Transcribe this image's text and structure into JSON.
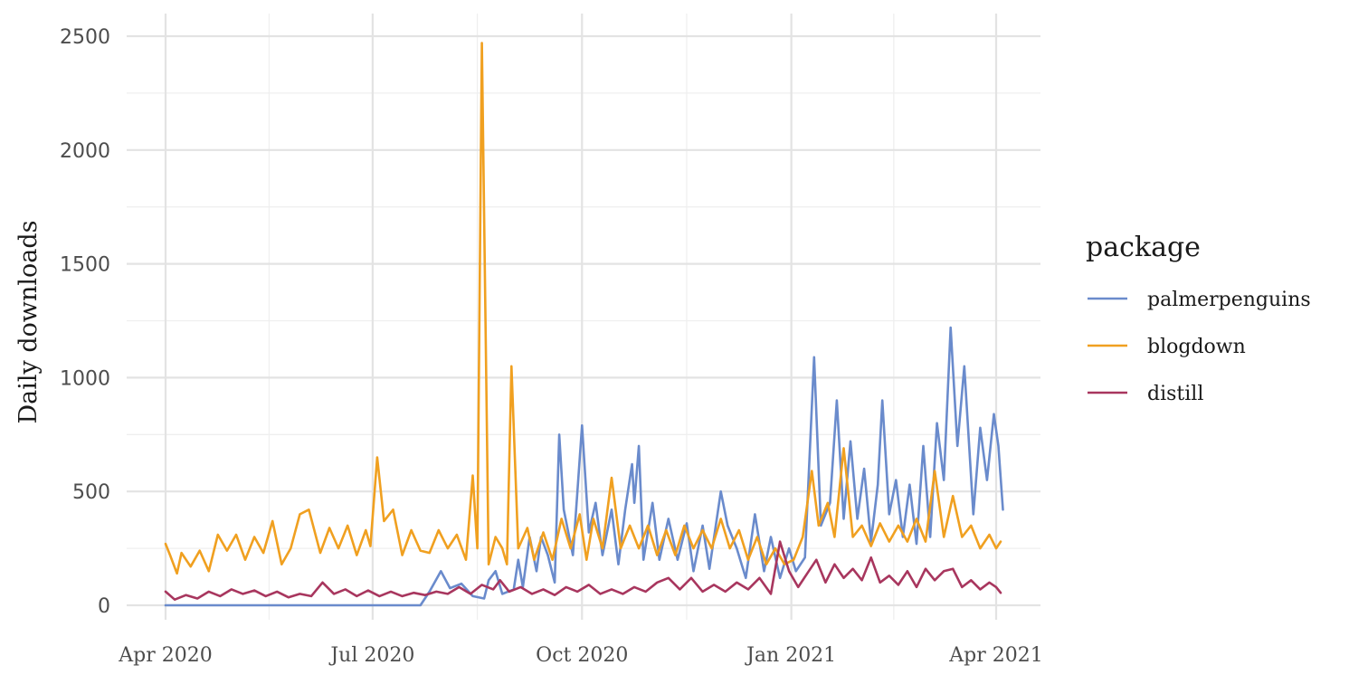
{
  "chart_data": {
    "type": "line",
    "title": "",
    "xlabel": "",
    "ylabel": "Daily downloads",
    "ylim": [
      0,
      2500
    ],
    "xlim": [
      "2020-04-01",
      "2021-04-01"
    ],
    "y_ticks": [
      "0",
      "500",
      "1000",
      "1500",
      "2000",
      "2500"
    ],
    "x_ticks": [
      {
        "date": "2020-04-01",
        "label": "Apr 2020"
      },
      {
        "date": "2020-07-01",
        "label": "Jul 2020"
      },
      {
        "date": "2020-10-01",
        "label": "Oct 2020"
      },
      {
        "date": "2021-01-01",
        "label": "Jan 2021"
      },
      {
        "date": "2021-04-01",
        "label": "Apr 2021"
      }
    ],
    "grid": true,
    "legend": {
      "title": "package",
      "position": "right"
    },
    "series": [
      {
        "name": "palmerpenguins",
        "color": "#6A8BCC",
        "points": [
          [
            "2020-04-01",
            0
          ],
          [
            "2020-07-22",
            0
          ],
          [
            "2020-07-26",
            60
          ],
          [
            "2020-07-31",
            150
          ],
          [
            "2020-08-04",
            75
          ],
          [
            "2020-08-09",
            95
          ],
          [
            "2020-08-14",
            40
          ],
          [
            "2020-08-19",
            30
          ],
          [
            "2020-08-21",
            110
          ],
          [
            "2020-08-24",
            150
          ],
          [
            "2020-08-27",
            50
          ],
          [
            "2020-09-01",
            70
          ],
          [
            "2020-09-03",
            200
          ],
          [
            "2020-09-05",
            80
          ],
          [
            "2020-09-08",
            300
          ],
          [
            "2020-09-11",
            150
          ],
          [
            "2020-09-13",
            300
          ],
          [
            "2020-09-16",
            220
          ],
          [
            "2020-09-19",
            100
          ],
          [
            "2020-09-21",
            750
          ],
          [
            "2020-09-23",
            420
          ],
          [
            "2020-09-27",
            220
          ],
          [
            "2020-09-29",
            500
          ],
          [
            "2020-10-01",
            790
          ],
          [
            "2020-10-04",
            320
          ],
          [
            "2020-10-07",
            450
          ],
          [
            "2020-10-10",
            220
          ],
          [
            "2020-10-14",
            420
          ],
          [
            "2020-10-17",
            180
          ],
          [
            "2020-10-20",
            420
          ],
          [
            "2020-10-23",
            620
          ],
          [
            "2020-10-24",
            450
          ],
          [
            "2020-10-26",
            700
          ],
          [
            "2020-10-28",
            200
          ],
          [
            "2020-11-01",
            450
          ],
          [
            "2020-11-04",
            200
          ],
          [
            "2020-11-08",
            380
          ],
          [
            "2020-11-12",
            200
          ],
          [
            "2020-11-16",
            360
          ],
          [
            "2020-11-19",
            150
          ],
          [
            "2020-11-23",
            350
          ],
          [
            "2020-11-26",
            160
          ],
          [
            "2020-12-01",
            500
          ],
          [
            "2020-12-04",
            350
          ],
          [
            "2020-12-08",
            250
          ],
          [
            "2020-12-12",
            120
          ],
          [
            "2020-12-16",
            400
          ],
          [
            "2020-12-20",
            150
          ],
          [
            "2020-12-23",
            300
          ],
          [
            "2020-12-27",
            120
          ],
          [
            "2020-12-31",
            250
          ],
          [
            "2021-01-03",
            150
          ],
          [
            "2021-01-07",
            210
          ],
          [
            "2021-01-11",
            1090
          ],
          [
            "2021-01-14",
            350
          ],
          [
            "2021-01-18",
            450
          ],
          [
            "2021-01-21",
            900
          ],
          [
            "2021-01-24",
            380
          ],
          [
            "2021-01-27",
            720
          ],
          [
            "2021-01-30",
            380
          ],
          [
            "2021-02-02",
            600
          ],
          [
            "2021-02-05",
            280
          ],
          [
            "2021-02-08",
            530
          ],
          [
            "2021-02-10",
            900
          ],
          [
            "2021-02-13",
            400
          ],
          [
            "2021-02-16",
            550
          ],
          [
            "2021-02-19",
            300
          ],
          [
            "2021-02-22",
            530
          ],
          [
            "2021-02-25",
            270
          ],
          [
            "2021-02-28",
            700
          ],
          [
            "2021-03-03",
            300
          ],
          [
            "2021-03-06",
            800
          ],
          [
            "2021-03-09",
            550
          ],
          [
            "2021-03-12",
            1220
          ],
          [
            "2021-03-15",
            700
          ],
          [
            "2021-03-18",
            1050
          ],
          [
            "2021-03-22",
            400
          ],
          [
            "2021-03-25",
            780
          ],
          [
            "2021-03-28",
            550
          ],
          [
            "2021-03-31",
            840
          ],
          [
            "2021-04-02",
            700
          ],
          [
            "2021-04-04",
            420
          ]
        ]
      },
      {
        "name": "blogdown",
        "color": "#F0A020",
        "points": [
          [
            "2020-04-01",
            270
          ],
          [
            "2020-04-03",
            220
          ],
          [
            "2020-04-06",
            140
          ],
          [
            "2020-04-08",
            230
          ],
          [
            "2020-04-12",
            170
          ],
          [
            "2020-04-16",
            240
          ],
          [
            "2020-04-20",
            150
          ],
          [
            "2020-04-24",
            310
          ],
          [
            "2020-04-28",
            240
          ],
          [
            "2020-05-02",
            310
          ],
          [
            "2020-05-06",
            200
          ],
          [
            "2020-05-10",
            300
          ],
          [
            "2020-05-14",
            230
          ],
          [
            "2020-05-18",
            370
          ],
          [
            "2020-05-22",
            180
          ],
          [
            "2020-05-26",
            250
          ],
          [
            "2020-05-30",
            400
          ],
          [
            "2020-06-03",
            420
          ],
          [
            "2020-06-08",
            230
          ],
          [
            "2020-06-12",
            340
          ],
          [
            "2020-06-16",
            250
          ],
          [
            "2020-06-20",
            350
          ],
          [
            "2020-06-24",
            220
          ],
          [
            "2020-06-28",
            330
          ],
          [
            "2020-06-30",
            260
          ],
          [
            "2020-07-03",
            650
          ],
          [
            "2020-07-06",
            370
          ],
          [
            "2020-07-10",
            420
          ],
          [
            "2020-07-14",
            220
          ],
          [
            "2020-07-18",
            330
          ],
          [
            "2020-07-22",
            240
          ],
          [
            "2020-07-26",
            230
          ],
          [
            "2020-07-30",
            330
          ],
          [
            "2020-08-03",
            250
          ],
          [
            "2020-08-07",
            310
          ],
          [
            "2020-08-11",
            200
          ],
          [
            "2020-08-14",
            570
          ],
          [
            "2020-08-16",
            250
          ],
          [
            "2020-08-18",
            2470
          ],
          [
            "2020-08-21",
            180
          ],
          [
            "2020-08-24",
            300
          ],
          [
            "2020-08-27",
            250
          ],
          [
            "2020-08-29",
            180
          ],
          [
            "2020-08-31",
            1050
          ],
          [
            "2020-09-03",
            250
          ],
          [
            "2020-09-07",
            340
          ],
          [
            "2020-09-10",
            200
          ],
          [
            "2020-09-14",
            320
          ],
          [
            "2020-09-18",
            200
          ],
          [
            "2020-09-22",
            380
          ],
          [
            "2020-09-26",
            250
          ],
          [
            "2020-09-30",
            400
          ],
          [
            "2020-10-03",
            200
          ],
          [
            "2020-10-06",
            380
          ],
          [
            "2020-10-10",
            250
          ],
          [
            "2020-10-14",
            560
          ],
          [
            "2020-10-18",
            250
          ],
          [
            "2020-10-22",
            350
          ],
          [
            "2020-10-26",
            250
          ],
          [
            "2020-10-30",
            350
          ],
          [
            "2020-11-03",
            220
          ],
          [
            "2020-11-07",
            330
          ],
          [
            "2020-11-11",
            220
          ],
          [
            "2020-11-15",
            350
          ],
          [
            "2020-11-19",
            250
          ],
          [
            "2020-11-23",
            330
          ],
          [
            "2020-11-27",
            250
          ],
          [
            "2020-12-01",
            380
          ],
          [
            "2020-12-05",
            250
          ],
          [
            "2020-12-09",
            330
          ],
          [
            "2020-12-13",
            200
          ],
          [
            "2020-12-17",
            300
          ],
          [
            "2020-12-21",
            180
          ],
          [
            "2020-12-25",
            250
          ],
          [
            "2020-12-29",
            180
          ],
          [
            "2021-01-02",
            200
          ],
          [
            "2021-01-06",
            300
          ],
          [
            "2021-01-10",
            590
          ],
          [
            "2021-01-13",
            350
          ],
          [
            "2021-01-17",
            450
          ],
          [
            "2021-01-20",
            300
          ],
          [
            "2021-01-24",
            690
          ],
          [
            "2021-01-28",
            300
          ],
          [
            "2021-02-01",
            350
          ],
          [
            "2021-02-05",
            260
          ],
          [
            "2021-02-09",
            360
          ],
          [
            "2021-02-13",
            280
          ],
          [
            "2021-02-17",
            350
          ],
          [
            "2021-02-21",
            280
          ],
          [
            "2021-02-25",
            380
          ],
          [
            "2021-03-01",
            280
          ],
          [
            "2021-03-05",
            590
          ],
          [
            "2021-03-09",
            300
          ],
          [
            "2021-03-13",
            480
          ],
          [
            "2021-03-17",
            300
          ],
          [
            "2021-03-21",
            350
          ],
          [
            "2021-03-25",
            250
          ],
          [
            "2021-03-29",
            310
          ],
          [
            "2021-04-01",
            250
          ],
          [
            "2021-04-03",
            280
          ]
        ]
      },
      {
        "name": "distill",
        "color": "#A8365E",
        "points": [
          [
            "2020-04-01",
            60
          ],
          [
            "2020-04-05",
            25
          ],
          [
            "2020-04-10",
            45
          ],
          [
            "2020-04-15",
            30
          ],
          [
            "2020-04-20",
            60
          ],
          [
            "2020-04-25",
            40
          ],
          [
            "2020-04-30",
            70
          ],
          [
            "2020-05-05",
            50
          ],
          [
            "2020-05-10",
            65
          ],
          [
            "2020-05-15",
            40
          ],
          [
            "2020-05-20",
            60
          ],
          [
            "2020-05-25",
            35
          ],
          [
            "2020-05-30",
            50
          ],
          [
            "2020-06-04",
            40
          ],
          [
            "2020-06-09",
            100
          ],
          [
            "2020-06-14",
            50
          ],
          [
            "2020-06-19",
            70
          ],
          [
            "2020-06-24",
            40
          ],
          [
            "2020-06-29",
            65
          ],
          [
            "2020-07-04",
            40
          ],
          [
            "2020-07-09",
            60
          ],
          [
            "2020-07-14",
            40
          ],
          [
            "2020-07-19",
            55
          ],
          [
            "2020-07-24",
            45
          ],
          [
            "2020-07-29",
            60
          ],
          [
            "2020-08-03",
            50
          ],
          [
            "2020-08-08",
            80
          ],
          [
            "2020-08-13",
            50
          ],
          [
            "2020-08-18",
            90
          ],
          [
            "2020-08-23",
            70
          ],
          [
            "2020-08-26",
            110
          ],
          [
            "2020-08-30",
            60
          ],
          [
            "2020-09-04",
            80
          ],
          [
            "2020-09-09",
            50
          ],
          [
            "2020-09-14",
            70
          ],
          [
            "2020-09-19",
            45
          ],
          [
            "2020-09-24",
            80
          ],
          [
            "2020-09-29",
            60
          ],
          [
            "2020-10-04",
            90
          ],
          [
            "2020-10-09",
            50
          ],
          [
            "2020-10-14",
            70
          ],
          [
            "2020-10-19",
            50
          ],
          [
            "2020-10-24",
            80
          ],
          [
            "2020-10-29",
            60
          ],
          [
            "2020-11-03",
            100
          ],
          [
            "2020-11-08",
            120
          ],
          [
            "2020-11-13",
            70
          ],
          [
            "2020-11-18",
            120
          ],
          [
            "2020-11-23",
            60
          ],
          [
            "2020-11-28",
            90
          ],
          [
            "2020-12-03",
            60
          ],
          [
            "2020-12-08",
            100
          ],
          [
            "2020-12-13",
            70
          ],
          [
            "2020-12-18",
            120
          ],
          [
            "2020-12-23",
            50
          ],
          [
            "2020-12-27",
            280
          ],
          [
            "2020-12-31",
            150
          ],
          [
            "2021-01-04",
            80
          ],
          [
            "2021-01-08",
            140
          ],
          [
            "2021-01-12",
            200
          ],
          [
            "2021-01-16",
            100
          ],
          [
            "2021-01-20",
            180
          ],
          [
            "2021-01-24",
            120
          ],
          [
            "2021-01-28",
            160
          ],
          [
            "2021-02-01",
            110
          ],
          [
            "2021-02-05",
            210
          ],
          [
            "2021-02-09",
            100
          ],
          [
            "2021-02-13",
            130
          ],
          [
            "2021-02-17",
            90
          ],
          [
            "2021-02-21",
            150
          ],
          [
            "2021-02-25",
            80
          ],
          [
            "2021-03-01",
            160
          ],
          [
            "2021-03-05",
            110
          ],
          [
            "2021-03-09",
            150
          ],
          [
            "2021-03-13",
            160
          ],
          [
            "2021-03-17",
            80
          ],
          [
            "2021-03-21",
            110
          ],
          [
            "2021-03-25",
            70
          ],
          [
            "2021-03-29",
            100
          ],
          [
            "2021-04-01",
            80
          ],
          [
            "2021-04-03",
            55
          ]
        ]
      }
    ]
  }
}
